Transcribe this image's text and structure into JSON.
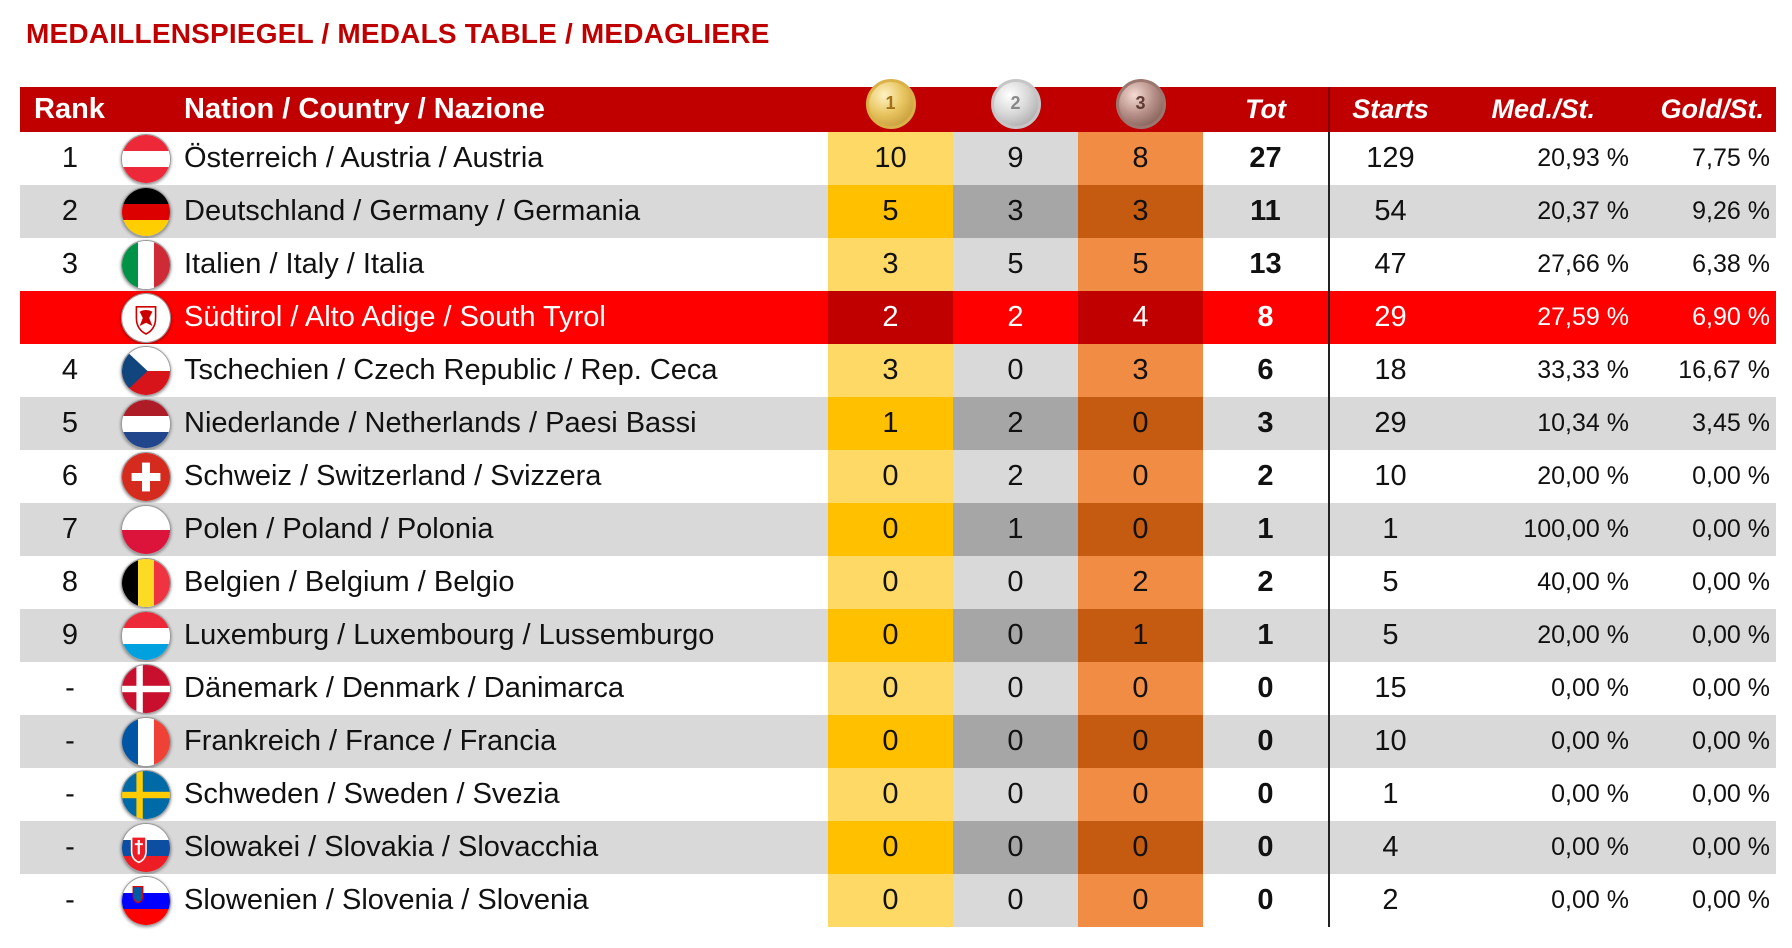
{
  "title": "MEDAILLENSPIEGEL / MEDALS TABLE / MEDAGLIERE",
  "header": {
    "rank": "Rank",
    "nation": "Nation / Country / Nazione",
    "gold_medal_label": "1",
    "silver_medal_label": "2",
    "bronze_medal_label": "3",
    "tot": "Tot",
    "starts": "Starts",
    "med_per_start": "Med./St.",
    "gold_per_start": "Gold/St."
  },
  "colors": {
    "title": "#c00000",
    "header_bg": "#c00000",
    "highlight_row": "#ff0000",
    "gold_light": "#ffd966",
    "gold_dark": "#ffc000",
    "silver_light": "#d9d9d9",
    "silver_dark": "#a6a6a6",
    "bronze_light": "#f08c44",
    "bronze_dark": "#c55a11"
  },
  "rows": [
    {
      "rank": "1",
      "flag": "austria-flag",
      "nation": "Österreich / Austria / Austria",
      "gold": "10",
      "silver": "9",
      "bronze": "8",
      "tot": "27",
      "starts": "129",
      "med_st": "20,93  %",
      "gold_st": "7,75  %"
    },
    {
      "rank": "2",
      "flag": "germany-flag",
      "nation": "Deutschland / Germany / Germania",
      "gold": "5",
      "silver": "3",
      "bronze": "3",
      "tot": "11",
      "starts": "54",
      "med_st": "20,37  %",
      "gold_st": "9,26  %"
    },
    {
      "rank": "3",
      "flag": "italy-flag",
      "nation": "Italien / Italy / Italia",
      "gold": "3",
      "silver": "5",
      "bronze": "5",
      "tot": "13",
      "starts": "47",
      "med_st": "27,66  %",
      "gold_st": "6,38  %"
    },
    {
      "rank": "",
      "flag": "south-tyrol-flag",
      "nation": "Südtirol / Alto Adige / South Tyrol",
      "gold": "2",
      "silver": "2",
      "bronze": "4",
      "tot": "8",
      "starts": "29",
      "med_st": "27,59  %",
      "gold_st": "6,90  %",
      "highlight": true
    },
    {
      "rank": "4",
      "flag": "czech-flag",
      "nation": "Tschechien / Czech Republic / Rep. Ceca",
      "gold": "3",
      "silver": "0",
      "bronze": "3",
      "tot": "6",
      "starts": "18",
      "med_st": "33,33  %",
      "gold_st": "16,67  %"
    },
    {
      "rank": "5",
      "flag": "netherlands-flag",
      "nation": "Niederlande / Netherlands / Paesi Bassi",
      "gold": "1",
      "silver": "2",
      "bronze": "0",
      "tot": "3",
      "starts": "29",
      "med_st": "10,34  %",
      "gold_st": "3,45  %"
    },
    {
      "rank": "6",
      "flag": "switzerland-flag",
      "nation": "Schweiz / Switzerland / Svizzera",
      "gold": "0",
      "silver": "2",
      "bronze": "0",
      "tot": "2",
      "starts": "10",
      "med_st": "20,00  %",
      "gold_st": "0,00  %"
    },
    {
      "rank": "7",
      "flag": "poland-flag",
      "nation": "Polen / Poland / Polonia",
      "gold": "0",
      "silver": "1",
      "bronze": "0",
      "tot": "1",
      "starts": "1",
      "med_st": "100,00  %",
      "gold_st": "0,00  %"
    },
    {
      "rank": "8",
      "flag": "belgium-flag",
      "nation": "Belgien / Belgium / Belgio",
      "gold": "0",
      "silver": "0",
      "bronze": "2",
      "tot": "2",
      "starts": "5",
      "med_st": "40,00  %",
      "gold_st": "0,00  %"
    },
    {
      "rank": "9",
      "flag": "luxembourg-flag",
      "nation": "Luxemburg / Luxembourg / Lussemburgo",
      "gold": "0",
      "silver": "0",
      "bronze": "1",
      "tot": "1",
      "starts": "5",
      "med_st": "20,00  %",
      "gold_st": "0,00  %"
    },
    {
      "rank": "-",
      "flag": "denmark-flag",
      "nation": "Dänemark / Denmark / Danimarca",
      "gold": "0",
      "silver": "0",
      "bronze": "0",
      "tot": "0",
      "starts": "15",
      "med_st": "0,00  %",
      "gold_st": "0,00  %"
    },
    {
      "rank": "-",
      "flag": "france-flag",
      "nation": "Frankreich / France / Francia",
      "gold": "0",
      "silver": "0",
      "bronze": "0",
      "tot": "0",
      "starts": "10",
      "med_st": "0,00  %",
      "gold_st": "0,00  %"
    },
    {
      "rank": "-",
      "flag": "sweden-flag",
      "nation": "Schweden / Sweden / Svezia",
      "gold": "0",
      "silver": "0",
      "bronze": "0",
      "tot": "0",
      "starts": "1",
      "med_st": "0,00  %",
      "gold_st": "0,00  %"
    },
    {
      "rank": "-",
      "flag": "slovakia-flag",
      "nation": "Slowakei / Slovakia / Slovacchia",
      "gold": "0",
      "silver": "0",
      "bronze": "0",
      "tot": "0",
      "starts": "4",
      "med_st": "0,00  %",
      "gold_st": "0,00  %"
    },
    {
      "rank": "-",
      "flag": "slovenia-flag",
      "nation": "Slowenien / Slovenia / Slovenia",
      "gold": "0",
      "silver": "0",
      "bronze": "0",
      "tot": "0",
      "starts": "2",
      "med_st": "0,00  %",
      "gold_st": "0,00  %"
    }
  ]
}
